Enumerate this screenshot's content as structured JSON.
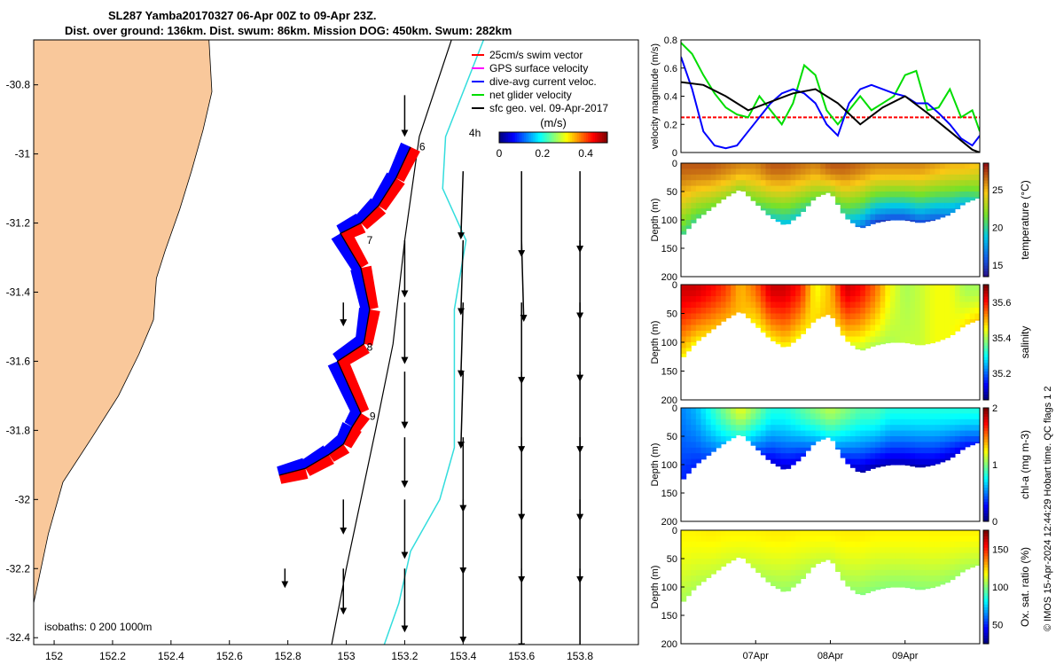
{
  "title_line1": "SL287 Yamba20170327 06-Apr 00Z to 09-Apr 23Z.",
  "title_line2": "Dist. over ground: 136km. Dist. swum: 86km. Mission DOG: 450km. Swum: 282km",
  "credit": "© IMOS 15-Apr-2024 12:44:29 Hobart time. QC flags 1  2",
  "map": {
    "x_ticks": [
      152,
      152.2,
      152.4,
      152.6,
      152.8,
      153,
      153.2,
      153.4,
      153.6,
      153.8
    ],
    "y_ticks": [
      -30.8,
      -31,
      -31.2,
      -31.4,
      -31.6,
      -31.8,
      -32,
      -32.2,
      -32.4
    ],
    "xlim": [
      151.93,
      154.0
    ],
    "ylim": [
      -32.42,
      -30.67
    ],
    "isobath_text": "isobaths: 0   200  1000m",
    "legend": [
      {
        "label": "25cm/s swim vector",
        "color": "#ff0000"
      },
      {
        "label": "GPS surface velocity",
        "color": "#ff00ff"
      },
      {
        "label": "dive-avg current veloc.",
        "color": "#0000ff"
      },
      {
        "label": "net glider velocity",
        "color": "#00dd00"
      },
      {
        "label": "sfc geo. vel. 09-Apr-2017",
        "color": "#000000"
      }
    ],
    "colorbar": {
      "label": "(m/s)",
      "ticks": [
        0,
        0.2,
        0.4
      ],
      "range": [
        0,
        0.5
      ]
    },
    "day_labels": [
      {
        "text": "4h",
        "lon": 153.42,
        "lat": -30.95
      },
      {
        "text": "6",
        "lon": 153.25,
        "lat": -30.99
      },
      {
        "text": "7",
        "lon": 153.07,
        "lat": -31.26
      },
      {
        "text": "8",
        "lon": 153.07,
        "lat": -31.57
      },
      {
        "text": "9",
        "lon": 153.08,
        "lat": -31.77
      }
    ],
    "track": [
      [
        152.77,
        -31.93
      ],
      [
        152.86,
        -31.91
      ],
      [
        152.94,
        -31.87
      ],
      [
        152.99,
        -31.84
      ],
      [
        153.02,
        -31.79
      ],
      [
        153.05,
        -31.75
      ],
      [
        152.97,
        -31.6
      ],
      [
        153.06,
        -31.55
      ],
      [
        153.08,
        -31.45
      ],
      [
        153.05,
        -31.33
      ],
      [
        152.98,
        -31.23
      ],
      [
        153.05,
        -31.2
      ],
      [
        153.11,
        -31.15
      ],
      [
        153.17,
        -31.07
      ],
      [
        153.22,
        -30.98
      ]
    ],
    "coast": [
      [
        151.93,
        -30.67
      ],
      [
        152.53,
        -30.67
      ],
      [
        152.54,
        -30.82
      ],
      [
        152.51,
        -30.93
      ],
      [
        152.47,
        -31.05
      ],
      [
        152.43,
        -31.16
      ],
      [
        152.38,
        -31.28
      ],
      [
        152.35,
        -31.36
      ],
      [
        152.34,
        -31.48
      ],
      [
        152.29,
        -31.58
      ],
      [
        152.22,
        -31.7
      ],
      [
        152.13,
        -31.82
      ],
      [
        152.03,
        -31.95
      ],
      [
        151.98,
        -32.1
      ],
      [
        151.93,
        -32.3
      ]
    ],
    "iso200": [
      [
        153.47,
        -30.67
      ],
      [
        153.34,
        -30.95
      ],
      [
        153.33,
        -31.1
      ],
      [
        153.41,
        -31.25
      ],
      [
        153.37,
        -31.45
      ],
      [
        153.37,
        -31.65
      ],
      [
        153.37,
        -31.85
      ],
      [
        153.32,
        -32.0
      ],
      [
        153.22,
        -32.15
      ],
      [
        153.18,
        -32.3
      ],
      [
        153.13,
        -32.42
      ]
    ],
    "iso1000": [
      [
        153.36,
        -30.67
      ],
      [
        153.25,
        -30.95
      ],
      [
        153.2,
        -31.25
      ],
      [
        153.16,
        -31.55
      ],
      [
        153.1,
        -31.8
      ],
      [
        153.05,
        -32.0
      ],
      [
        153.0,
        -32.2
      ],
      [
        152.95,
        -32.42
      ]
    ],
    "geo_vectors": [
      {
        "lon": 153.2,
        "lat": -30.83,
        "u": 0.0,
        "v": -0.18
      },
      {
        "lon": 153.4,
        "lat": -31.05,
        "u": -0.01,
        "v": -0.3
      },
      {
        "lon": 153.6,
        "lat": -31.05,
        "u": 0.0,
        "v": -0.38
      },
      {
        "lon": 153.8,
        "lat": -31.05,
        "u": 0.0,
        "v": -0.36
      },
      {
        "lon": 153.2,
        "lat": -31.25,
        "u": 0.0,
        "v": -0.25
      },
      {
        "lon": 153.4,
        "lat": -31.25,
        "u": -0.01,
        "v": -0.33
      },
      {
        "lon": 153.6,
        "lat": -31.25,
        "u": 0.01,
        "v": -0.36
      },
      {
        "lon": 153.8,
        "lat": -31.25,
        "u": 0.0,
        "v": -0.35
      },
      {
        "lon": 152.99,
        "lat": -31.43,
        "u": 0.0,
        "v": -0.1
      },
      {
        "lon": 153.2,
        "lat": -31.43,
        "u": 0.0,
        "v": -0.27
      },
      {
        "lon": 153.4,
        "lat": -31.43,
        "u": -0.01,
        "v": -0.33
      },
      {
        "lon": 153.6,
        "lat": -31.43,
        "u": 0.0,
        "v": -0.36
      },
      {
        "lon": 153.8,
        "lat": -31.43,
        "u": 0.0,
        "v": -0.35
      },
      {
        "lon": 153.2,
        "lat": -31.63,
        "u": 0.0,
        "v": -0.25
      },
      {
        "lon": 153.4,
        "lat": -31.63,
        "u": -0.01,
        "v": -0.34
      },
      {
        "lon": 153.6,
        "lat": -31.63,
        "u": 0.0,
        "v": -0.36
      },
      {
        "lon": 153.8,
        "lat": -31.63,
        "u": 0.0,
        "v": -0.36
      },
      {
        "lon": 153.2,
        "lat": -31.82,
        "u": 0.0,
        "v": -0.22
      },
      {
        "lon": 153.4,
        "lat": -31.82,
        "u": 0.0,
        "v": -0.33
      },
      {
        "lon": 153.6,
        "lat": -31.82,
        "u": 0.0,
        "v": -0.37
      },
      {
        "lon": 153.8,
        "lat": -31.82,
        "u": 0.0,
        "v": -0.37
      },
      {
        "lon": 152.99,
        "lat": -32.0,
        "u": 0.0,
        "v": -0.15
      },
      {
        "lon": 153.2,
        "lat": -32.0,
        "u": 0.0,
        "v": -0.26
      },
      {
        "lon": 153.4,
        "lat": -32.0,
        "u": 0.0,
        "v": -0.33
      },
      {
        "lon": 153.6,
        "lat": -32.0,
        "u": 0.0,
        "v": -0.37
      },
      {
        "lon": 153.8,
        "lat": -32.0,
        "u": 0.0,
        "v": -0.37
      },
      {
        "lon": 152.79,
        "lat": -32.2,
        "u": 0.0,
        "v": -0.08
      },
      {
        "lon": 152.99,
        "lat": -32.2,
        "u": 0.0,
        "v": -0.2
      },
      {
        "lon": 153.2,
        "lat": -32.2,
        "u": 0.0,
        "v": -0.28
      },
      {
        "lon": 153.4,
        "lat": -32.2,
        "u": 0.0,
        "v": -0.33
      },
      {
        "lon": 153.6,
        "lat": -32.2,
        "u": 0.0,
        "v": -0.36
      },
      {
        "lon": 153.8,
        "lat": -32.2,
        "u": 0.0,
        "v": -0.37
      }
    ]
  },
  "chart_data": [
    {
      "type": "line",
      "ylabel": "velocity magnitude (m/s)",
      "ylim": [
        0,
        0.8
      ],
      "y_ticks": [
        0,
        0.2,
        0.4,
        0.6,
        0.8
      ],
      "xlim": [
        6.0,
        10.0
      ],
      "x_ticks": [],
      "series": [
        {
          "color": "#ff0000",
          "dashed": true,
          "x": [
            6.0,
            10.0
          ],
          "y": [
            0.25,
            0.25
          ]
        },
        {
          "color": "#00dd00",
          "x": [
            6.0,
            6.15,
            6.3,
            6.45,
            6.6,
            6.75,
            6.9,
            7.05,
            7.2,
            7.35,
            7.5,
            7.65,
            7.8,
            7.95,
            8.1,
            8.25,
            8.4,
            8.55,
            8.7,
            8.85,
            9.0,
            9.15,
            9.3,
            9.45,
            9.6,
            9.75,
            9.9,
            10.0
          ],
          "y": [
            0.78,
            0.7,
            0.55,
            0.42,
            0.32,
            0.27,
            0.25,
            0.4,
            0.3,
            0.2,
            0.35,
            0.62,
            0.55,
            0.3,
            0.2,
            0.3,
            0.4,
            0.3,
            0.35,
            0.4,
            0.55,
            0.58,
            0.3,
            0.32,
            0.45,
            0.25,
            0.3,
            0.15
          ]
        },
        {
          "color": "#0000ff",
          "x": [
            6.0,
            6.15,
            6.3,
            6.45,
            6.6,
            6.75,
            6.9,
            7.05,
            7.2,
            7.35,
            7.5,
            7.65,
            7.8,
            7.95,
            8.1,
            8.25,
            8.4,
            8.55,
            8.7,
            8.85,
            9.0,
            9.15,
            9.3,
            9.45,
            9.6,
            9.75,
            9.9,
            10.0
          ],
          "y": [
            0.68,
            0.45,
            0.15,
            0.05,
            0.03,
            0.05,
            0.15,
            0.25,
            0.35,
            0.42,
            0.45,
            0.42,
            0.35,
            0.2,
            0.12,
            0.35,
            0.45,
            0.48,
            0.45,
            0.42,
            0.4,
            0.35,
            0.35,
            0.28,
            0.2,
            0.1,
            0.05,
            0.12
          ]
        },
        {
          "color": "#000000",
          "x": [
            6.0,
            6.3,
            6.6,
            6.9,
            7.2,
            7.5,
            7.8,
            8.1,
            8.4,
            8.7,
            9.0,
            9.3,
            9.6,
            9.9,
            10.0
          ],
          "y": [
            0.5,
            0.48,
            0.4,
            0.3,
            0.36,
            0.42,
            0.45,
            0.35,
            0.2,
            0.32,
            0.4,
            0.28,
            0.15,
            0.02,
            0.0
          ]
        }
      ]
    },
    {
      "type": "heatmap",
      "variable": "temperature",
      "cbar_label": "temperature (°C)",
      "ylabel": "Depth (m)",
      "ylim": [
        200,
        0
      ],
      "y_ticks": [
        0,
        50,
        100,
        150,
        200
      ],
      "xlim": [
        6.0,
        10.0
      ],
      "x_ticks": [],
      "clim": [
        13.5,
        28.5
      ],
      "cbar_ticks": [
        15,
        20,
        25
      ],
      "colormap": "jet",
      "profile_x": [
        6.0,
        6.2,
        6.4,
        6.6,
        6.8,
        7.0,
        7.2,
        7.4,
        7.6,
        7.8,
        8.0,
        8.2,
        8.4,
        8.6,
        8.8,
        9.0,
        9.2,
        9.4,
        9.6,
        9.8,
        10.0
      ],
      "bottom_depth": [
        130,
        100,
        80,
        60,
        45,
        70,
        95,
        110,
        90,
        60,
        50,
        95,
        115,
        105,
        100,
        100,
        105,
        100,
        90,
        70,
        60
      ],
      "surface_value": [
        27,
        27,
        27,
        26.5,
        26,
        26,
        27,
        27,
        26.5,
        26,
        27,
        27,
        26.5,
        26,
        26,
        26,
        26,
        25.5,
        25,
        25,
        24.5
      ],
      "bottom_value": [
        20,
        20,
        21,
        22,
        22,
        21,
        19,
        18,
        19,
        21,
        22,
        19,
        16,
        14.5,
        14.5,
        14.5,
        15,
        15,
        16.5,
        18,
        20
      ]
    },
    {
      "type": "heatmap",
      "variable": "salinity",
      "cbar_label": "salinity",
      "ylabel": "Depth (m)",
      "ylim": [
        200,
        0
      ],
      "y_ticks": [
        0,
        50,
        100,
        150,
        200
      ],
      "xlim": [
        6.0,
        10.0
      ],
      "x_ticks": [],
      "clim": [
        35.05,
        35.7
      ],
      "cbar_ticks": [
        35.2,
        35.4,
        35.6
      ],
      "colormap": "jet",
      "profile_x": [
        6.0,
        6.2,
        6.4,
        6.6,
        6.8,
        7.0,
        7.2,
        7.4,
        7.6,
        7.8,
        8.0,
        8.2,
        8.4,
        8.6,
        8.8,
        9.0,
        9.2,
        9.4,
        9.6,
        9.8,
        10.0
      ],
      "bottom_depth": [
        130,
        100,
        80,
        60,
        45,
        70,
        95,
        110,
        90,
        60,
        50,
        95,
        115,
        105,
        100,
        100,
        105,
        100,
        90,
        70,
        60
      ],
      "surface_value": [
        35.65,
        35.65,
        35.62,
        35.58,
        35.5,
        35.55,
        35.65,
        35.65,
        35.6,
        35.45,
        35.5,
        35.65,
        35.62,
        35.55,
        35.45,
        35.4,
        35.42,
        35.45,
        35.45,
        35.4,
        35.4
      ],
      "bottom_value": [
        35.45,
        35.45,
        35.48,
        35.5,
        35.5,
        35.45,
        35.45,
        35.45,
        35.45,
        35.48,
        35.5,
        35.45,
        35.4,
        35.4,
        35.4,
        35.42,
        35.42,
        35.45,
        35.45,
        35.48,
        35.5
      ]
    },
    {
      "type": "heatmap",
      "variable": "chl-a",
      "cbar_label": "chl-a (mg m-3)",
      "ylabel": "Depth (m)",
      "ylim": [
        200,
        0
      ],
      "y_ticks": [
        0,
        50,
        100,
        150,
        200
      ],
      "xlim": [
        6.0,
        10.0
      ],
      "x_ticks": [],
      "clim": [
        0,
        2
      ],
      "cbar_ticks": [
        0,
        1,
        2
      ],
      "colormap": "jet",
      "profile_x": [
        6.0,
        6.2,
        6.4,
        6.6,
        6.8,
        7.0,
        7.2,
        7.4,
        7.6,
        7.8,
        8.0,
        8.2,
        8.4,
        8.6,
        8.8,
        9.0,
        9.2,
        9.4,
        9.6,
        9.8,
        10.0
      ],
      "bottom_depth": [
        130,
        100,
        80,
        60,
        45,
        70,
        95,
        110,
        90,
        60,
        50,
        95,
        115,
        105,
        100,
        100,
        105,
        100,
        90,
        70,
        60
      ],
      "surface_value": [
        0.5,
        0.6,
        0.8,
        1.0,
        1.2,
        1.0,
        0.8,
        0.8,
        0.9,
        1.0,
        1.1,
        1.0,
        0.9,
        0.9,
        0.8,
        0.8,
        0.8,
        0.8,
        0.8,
        0.8,
        0.8
      ],
      "bottom_value": [
        0.3,
        0.3,
        0.4,
        0.6,
        0.8,
        0.4,
        0.15,
        0.1,
        0.2,
        0.5,
        0.7,
        0.2,
        0.05,
        0.05,
        0.05,
        0.05,
        0.05,
        0.1,
        0.1,
        0.2,
        0.3
      ]
    },
    {
      "type": "heatmap",
      "variable": "oxygen saturation",
      "cbar_label": "Ox. sat. ratio (%)",
      "ylabel": "Depth (m)",
      "ylim": [
        200,
        0
      ],
      "y_ticks": [
        0,
        50,
        100,
        150,
        200
      ],
      "xlim": [
        6.0,
        10.0
      ],
      "x_ticks": [
        7.0,
        8.0,
        9.0
      ],
      "x_tick_labels": [
        "07Apr",
        "08Apr",
        "09Apr"
      ],
      "clim": [
        25,
        175
      ],
      "cbar_ticks": [
        50,
        100,
        150
      ],
      "colormap": "jet",
      "profile_x": [
        6.0,
        6.2,
        6.4,
        6.6,
        6.8,
        7.0,
        7.2,
        7.4,
        7.6,
        7.8,
        8.0,
        8.2,
        8.4,
        8.6,
        8.8,
        9.0,
        9.2,
        9.4,
        9.6,
        9.8,
        10.0
      ],
      "bottom_depth": [
        130,
        100,
        80,
        60,
        45,
        70,
        95,
        110,
        90,
        60,
        50,
        95,
        115,
        105,
        100,
        100,
        105,
        100,
        90,
        70,
        60
      ],
      "surface_value": [
        120,
        120,
        121,
        120,
        120,
        120,
        121,
        121,
        120,
        120,
        120,
        121,
        121,
        120,
        120,
        120,
        120,
        120,
        120,
        120,
        120
      ],
      "bottom_value": [
        105,
        106,
        108,
        110,
        112,
        108,
        104,
        102,
        104,
        108,
        110,
        104,
        100,
        100,
        100,
        100,
        100,
        102,
        102,
        104,
        106
      ]
    }
  ]
}
